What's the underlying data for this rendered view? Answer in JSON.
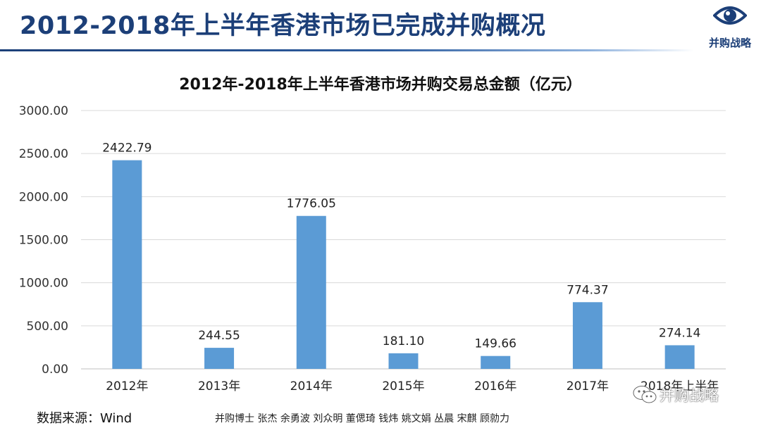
{
  "header": {
    "title": "2012-2018年上半年香港市场已完成并购概况",
    "logo_text": "并购战略",
    "logo_icon": "eye-icon",
    "accent_color": "#1c3f78"
  },
  "chart_data": {
    "type": "bar",
    "title": "2012年-2018年上半年香港市场并购交易总金额（亿元）",
    "categories": [
      "2012年",
      "2013年",
      "2014年",
      "2015年",
      "2016年",
      "2017年",
      "2018年上半年"
    ],
    "series": [
      {
        "values": [
          2422.79,
          244.55,
          1776.05,
          181.1,
          149.66,
          774.37,
          274.14
        ]
      }
    ],
    "value_labels": [
      "2422.79",
      "244.55",
      "1776.05",
      "181.10",
      "149.66",
      "774.37",
      "274.14"
    ],
    "y_ticks": [
      "0.00",
      "500.00",
      "1000.00",
      "1500.00",
      "2000.00",
      "2500.00",
      "3000.00"
    ],
    "ylim": [
      0,
      3000
    ],
    "grid": true,
    "bar_color": "#5b9bd5",
    "xlabel": "",
    "ylabel": ""
  },
  "footer": {
    "source": "数据来源：Wind",
    "authors": "并购博士 张杰 余勇波 刘众明 董偲琦 钱炜 姚文娟 丛晨 宋麒 顾勍力",
    "watermark": "并购战略",
    "watermark_icon": "wechat-icon"
  }
}
